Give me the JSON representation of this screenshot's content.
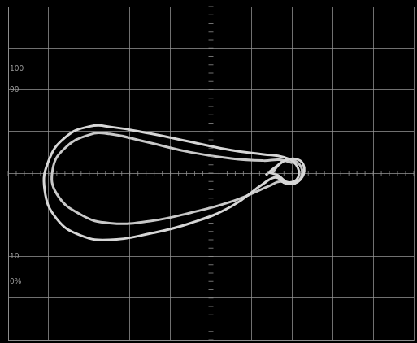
{
  "chart_data": {
    "type": "line",
    "xlim": [
      -5,
      5
    ],
    "ylim": [
      -4,
      4
    ],
    "xticks": [
      -5,
      -4,
      -3,
      -2,
      -1,
      0,
      1,
      2,
      3,
      4,
      5
    ],
    "yticks": [
      -4,
      -3,
      -2,
      -1,
      0,
      1,
      2,
      3,
      4
    ],
    "grid": true,
    "tick_labels": false,
    "annotations": [
      {
        "text": "100",
        "y": 2.5
      },
      {
        "text": "90",
        "y": 2.0
      },
      {
        "text": "10",
        "y": -2.0
      },
      {
        "text": "0%",
        "y": -2.6
      }
    ],
    "series": [
      {
        "color": "#d6d6d6",
        "marker": "none",
        "line_style": "solid",
        "x": [
          1.35,
          1.6,
          1.9,
          2.2,
          2.3,
          2.15,
          1.85,
          1.6,
          1.3,
          0.5,
          -0.5,
          -1.5,
          -2.5,
          -3.2,
          -3.8,
          -4.1,
          -4.0,
          -3.6,
          -3.0,
          -2.4,
          -1.5,
          -0.5,
          0.5,
          1.3,
          1.8,
          2.1,
          2.15,
          1.9,
          1.65,
          1.4
        ],
        "values": [
          -0.05,
          0.15,
          0.33,
          0.3,
          0.05,
          -0.2,
          -0.25,
          -0.1,
          -0.25,
          -0.8,
          -1.2,
          -1.45,
          -1.6,
          -1.5,
          -1.1,
          -0.4,
          0.3,
          0.85,
          1.12,
          1.1,
          0.95,
          0.75,
          0.55,
          0.45,
          0.38,
          0.2,
          -0.1,
          -0.22,
          -0.05,
          0.02
        ]
      },
      {
        "color": "#c8c8c8",
        "marker": "none",
        "line_style": "solid",
        "x": [
          1.5,
          1.8,
          2.1,
          2.25,
          2.05,
          1.7,
          1.45,
          0.6,
          -0.5,
          -1.5,
          -2.5,
          -3.2,
          -3.8,
          -3.9,
          -3.6,
          -3.0,
          -2.5,
          -1.6,
          -0.5,
          0.5,
          1.3,
          1.7,
          2.0
        ],
        "values": [
          0.0,
          0.3,
          0.28,
          0.0,
          -0.25,
          -0.2,
          -0.3,
          -0.65,
          -0.95,
          -1.15,
          -1.2,
          -1.0,
          -0.5,
          0.1,
          0.6,
          0.92,
          0.94,
          0.75,
          0.5,
          0.35,
          0.3,
          0.32,
          0.25
        ]
      }
    ]
  }
}
